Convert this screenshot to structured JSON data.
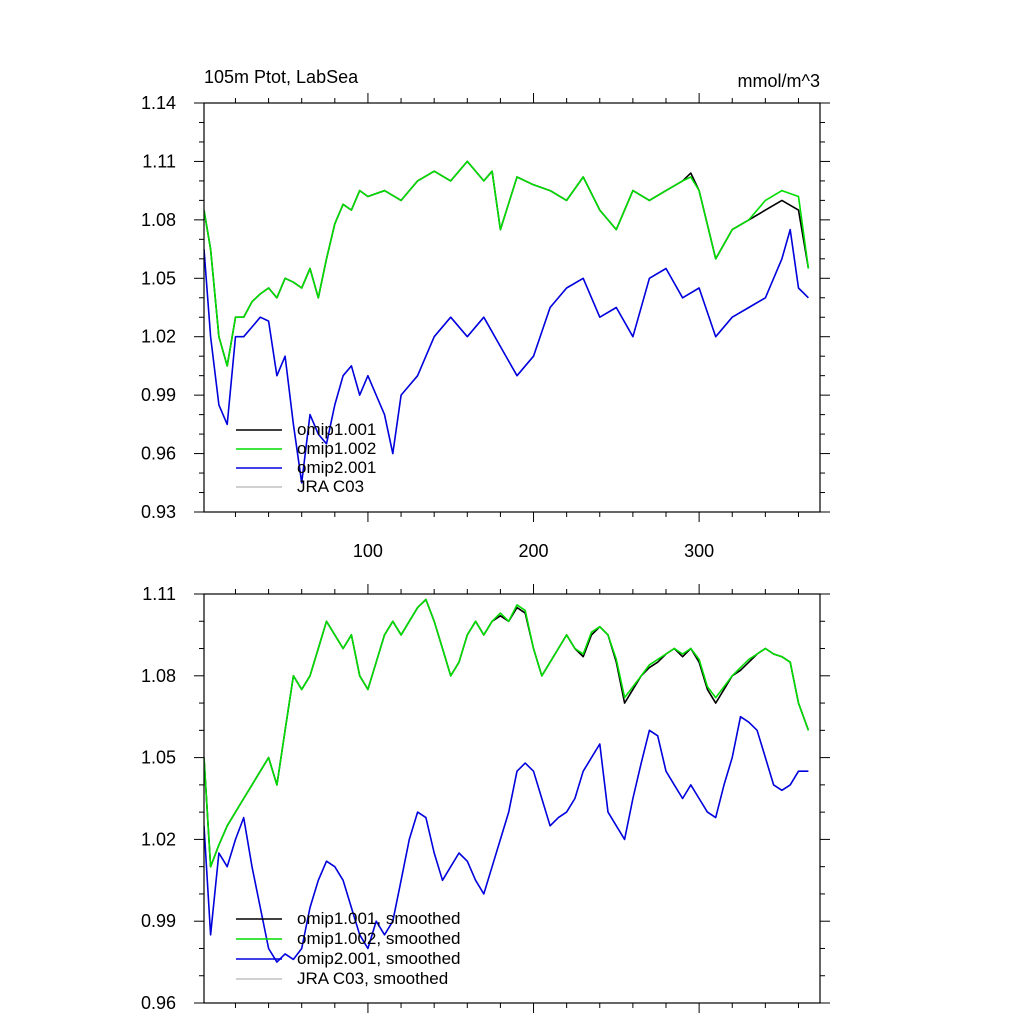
{
  "chart_data": [
    {
      "type": "line",
      "title": "105m Ptot, LabSea",
      "units": "mmol/m^3",
      "xlabel": "",
      "ylabel": "",
      "xlim": [
        1,
        373
      ],
      "ylim": [
        0.93,
        1.14
      ],
      "yticks": [
        0.93,
        0.96,
        0.99,
        1.02,
        1.05,
        1.08,
        1.11,
        1.14
      ],
      "yticklabels": [
        "0.93",
        "0.96",
        "0.99",
        "1.02",
        "1.05",
        "1.08",
        "1.11",
        "1.14"
      ],
      "xticks": [
        100,
        200,
        300
      ],
      "xticklabels": [
        "100",
        "200",
        "300"
      ],
      "legend_position": "bottom-left",
      "series": [
        {
          "name": "omip1.001",
          "color": "#000000",
          "x": [
            1,
            5,
            10,
            15,
            20,
            25,
            30,
            35,
            40,
            45,
            50,
            55,
            60,
            65,
            70,
            75,
            80,
            85,
            90,
            95,
            100,
            110,
            120,
            130,
            140,
            150,
            160,
            170,
            175,
            180,
            190,
            200,
            210,
            220,
            230,
            240,
            250,
            260,
            270,
            280,
            290,
            295,
            300,
            310,
            320,
            330,
            340,
            350,
            360,
            366
          ],
          "values": [
            1.085,
            1.065,
            1.02,
            1.005,
            1.03,
            1.03,
            1.038,
            1.042,
            1.045,
            1.04,
            1.05,
            1.048,
            1.045,
            1.055,
            1.04,
            1.06,
            1.078,
            1.088,
            1.085,
            1.095,
            1.092,
            1.095,
            1.09,
            1.1,
            1.105,
            1.1,
            1.11,
            1.1,
            1.105,
            1.075,
            1.102,
            1.098,
            1.095,
            1.09,
            1.102,
            1.085,
            1.075,
            1.095,
            1.09,
            1.095,
            1.1,
            1.104,
            1.095,
            1.06,
            1.075,
            1.08,
            1.085,
            1.09,
            1.085,
            1.055
          ]
        },
        {
          "name": "omip1.002",
          "color": "#00dd00",
          "x": [
            1,
            5,
            10,
            15,
            20,
            25,
            30,
            35,
            40,
            45,
            50,
            55,
            60,
            65,
            70,
            75,
            80,
            85,
            90,
            95,
            100,
            110,
            120,
            130,
            140,
            150,
            160,
            170,
            175,
            180,
            190,
            200,
            210,
            220,
            230,
            240,
            250,
            260,
            270,
            280,
            290,
            295,
            300,
            310,
            320,
            330,
            340,
            350,
            360,
            366
          ],
          "values": [
            1.085,
            1.065,
            1.02,
            1.005,
            1.03,
            1.03,
            1.038,
            1.042,
            1.045,
            1.04,
            1.05,
            1.048,
            1.045,
            1.055,
            1.04,
            1.06,
            1.078,
            1.088,
            1.085,
            1.095,
            1.092,
            1.095,
            1.09,
            1.1,
            1.105,
            1.1,
            1.11,
            1.1,
            1.105,
            1.075,
            1.102,
            1.098,
            1.095,
            1.09,
            1.102,
            1.085,
            1.075,
            1.095,
            1.09,
            1.095,
            1.1,
            1.102,
            1.095,
            1.06,
            1.075,
            1.08,
            1.09,
            1.095,
            1.092,
            1.055
          ]
        },
        {
          "name": "omip2.001",
          "color": "#0000dd",
          "x": [
            1,
            5,
            10,
            15,
            20,
            25,
            30,
            35,
            40,
            45,
            50,
            55,
            60,
            65,
            70,
            75,
            80,
            85,
            90,
            95,
            100,
            110,
            115,
            120,
            130,
            140,
            150,
            160,
            170,
            180,
            190,
            200,
            210,
            220,
            230,
            240,
            250,
            260,
            270,
            280,
            290,
            300,
            310,
            320,
            330,
            340,
            350,
            355,
            360,
            366
          ],
          "values": [
            1.065,
            1.02,
            0.985,
            0.975,
            1.02,
            1.02,
            1.025,
            1.03,
            1.028,
            1.0,
            1.01,
            0.975,
            0.945,
            0.98,
            0.97,
            0.965,
            0.985,
            1.0,
            1.005,
            0.99,
            1.0,
            0.98,
            0.96,
            0.99,
            1.0,
            1.02,
            1.03,
            1.02,
            1.03,
            1.015,
            1.0,
            1.01,
            1.035,
            1.045,
            1.05,
            1.03,
            1.035,
            1.02,
            1.05,
            1.055,
            1.04,
            1.045,
            1.02,
            1.03,
            1.035,
            1.04,
            1.06,
            1.075,
            1.045,
            1.04
          ]
        },
        {
          "name": "JRA C03",
          "color": "#c0c0c0",
          "x": [],
          "values": []
        }
      ]
    },
    {
      "type": "line",
      "title": "",
      "xlabel": "",
      "ylabel": "",
      "xlim": [
        1,
        373
      ],
      "ylim": [
        0.96,
        1.11
      ],
      "yticks": [
        0.96,
        0.99,
        1.02,
        1.05,
        1.08,
        1.11
      ],
      "yticklabels": [
        "0.96",
        "0.99",
        "1.02",
        "1.05",
        "1.08",
        "1.11"
      ],
      "xticks": [
        100,
        200,
        300
      ],
      "xticklabels": [],
      "legend_position": "bottom-left",
      "series": [
        {
          "name": "omip1.001, smoothed",
          "color": "#000000",
          "x": [
            1,
            5,
            10,
            15,
            20,
            25,
            30,
            35,
            40,
            45,
            50,
            55,
            60,
            65,
            70,
            75,
            80,
            85,
            90,
            95,
            100,
            105,
            110,
            115,
            120,
            125,
            130,
            135,
            140,
            145,
            150,
            155,
            160,
            165,
            170,
            175,
            180,
            185,
            190,
            195,
            200,
            205,
            210,
            215,
            220,
            225,
            230,
            235,
            240,
            245,
            250,
            255,
            260,
            265,
            270,
            275,
            280,
            285,
            290,
            295,
            300,
            305,
            310,
            315,
            320,
            325,
            330,
            335,
            340,
            345,
            350,
            355,
            360,
            366
          ],
          "values": [
            1.05,
            1.01,
            1.018,
            1.025,
            1.03,
            1.035,
            1.04,
            1.045,
            1.05,
            1.04,
            1.06,
            1.08,
            1.075,
            1.08,
            1.09,
            1.1,
            1.095,
            1.09,
            1.095,
            1.08,
            1.075,
            1.085,
            1.095,
            1.1,
            1.095,
            1.1,
            1.105,
            1.108,
            1.1,
            1.09,
            1.08,
            1.085,
            1.095,
            1.1,
            1.095,
            1.1,
            1.102,
            1.1,
            1.105,
            1.103,
            1.09,
            1.08,
            1.085,
            1.09,
            1.095,
            1.09,
            1.087,
            1.095,
            1.098,
            1.095,
            1.085,
            1.07,
            1.075,
            1.08,
            1.083,
            1.085,
            1.088,
            1.09,
            1.087,
            1.09,
            1.085,
            1.075,
            1.07,
            1.075,
            1.08,
            1.082,
            1.085,
            1.088,
            1.09,
            1.088,
            1.087,
            1.085,
            1.07,
            1.06
          ]
        },
        {
          "name": "omip1.002, smoothed",
          "color": "#00dd00",
          "x": [
            1,
            5,
            10,
            15,
            20,
            25,
            30,
            35,
            40,
            45,
            50,
            55,
            60,
            65,
            70,
            75,
            80,
            85,
            90,
            95,
            100,
            105,
            110,
            115,
            120,
            125,
            130,
            135,
            140,
            145,
            150,
            155,
            160,
            165,
            170,
            175,
            180,
            185,
            190,
            195,
            200,
            205,
            210,
            215,
            220,
            225,
            230,
            235,
            240,
            245,
            250,
            255,
            260,
            265,
            270,
            275,
            280,
            285,
            290,
            295,
            300,
            305,
            310,
            315,
            320,
            325,
            330,
            335,
            340,
            345,
            350,
            355,
            360,
            366
          ],
          "values": [
            1.05,
            1.01,
            1.018,
            1.025,
            1.03,
            1.035,
            1.04,
            1.045,
            1.05,
            1.04,
            1.06,
            1.08,
            1.075,
            1.08,
            1.09,
            1.1,
            1.095,
            1.09,
            1.095,
            1.08,
            1.075,
            1.085,
            1.095,
            1.1,
            1.095,
            1.1,
            1.105,
            1.108,
            1.1,
            1.09,
            1.08,
            1.085,
            1.095,
            1.1,
            1.095,
            1.1,
            1.103,
            1.1,
            1.106,
            1.104,
            1.09,
            1.08,
            1.085,
            1.09,
            1.095,
            1.09,
            1.088,
            1.096,
            1.098,
            1.095,
            1.086,
            1.072,
            1.076,
            1.08,
            1.084,
            1.086,
            1.088,
            1.09,
            1.088,
            1.09,
            1.086,
            1.076,
            1.072,
            1.076,
            1.08,
            1.083,
            1.086,
            1.088,
            1.09,
            1.088,
            1.087,
            1.085,
            1.07,
            1.06
          ]
        },
        {
          "name": "omip2.001, smoothed",
          "color": "#0000dd",
          "x": [
            1,
            5,
            10,
            15,
            20,
            25,
            30,
            35,
            40,
            45,
            50,
            55,
            60,
            65,
            70,
            75,
            80,
            85,
            90,
            95,
            100,
            105,
            110,
            115,
            120,
            125,
            130,
            135,
            140,
            145,
            150,
            155,
            160,
            165,
            170,
            175,
            180,
            185,
            190,
            195,
            200,
            205,
            210,
            215,
            220,
            225,
            230,
            235,
            240,
            245,
            250,
            255,
            260,
            265,
            270,
            275,
            280,
            285,
            290,
            295,
            300,
            305,
            310,
            315,
            320,
            325,
            330,
            335,
            340,
            345,
            350,
            355,
            360,
            366
          ],
          "values": [
            1.025,
            0.985,
            1.015,
            1.01,
            1.02,
            1.028,
            1.01,
            0.995,
            0.98,
            0.975,
            0.978,
            0.976,
            0.98,
            0.995,
            1.005,
            1.012,
            1.01,
            1.005,
            0.995,
            0.985,
            0.98,
            0.99,
            0.985,
            0.99,
            1.005,
            1.02,
            1.03,
            1.028,
            1.015,
            1.005,
            1.01,
            1.015,
            1.012,
            1.005,
            1.0,
            1.01,
            1.02,
            1.03,
            1.045,
            1.048,
            1.045,
            1.035,
            1.025,
            1.028,
            1.03,
            1.035,
            1.045,
            1.05,
            1.055,
            1.03,
            1.025,
            1.02,
            1.035,
            1.048,
            1.06,
            1.058,
            1.045,
            1.04,
            1.035,
            1.04,
            1.035,
            1.03,
            1.028,
            1.04,
            1.05,
            1.065,
            1.063,
            1.06,
            1.05,
            1.04,
            1.038,
            1.04,
            1.045,
            1.045
          ]
        },
        {
          "name": "JRA C03, smoothed",
          "color": "#c0c0c0",
          "x": [],
          "values": []
        }
      ]
    }
  ]
}
